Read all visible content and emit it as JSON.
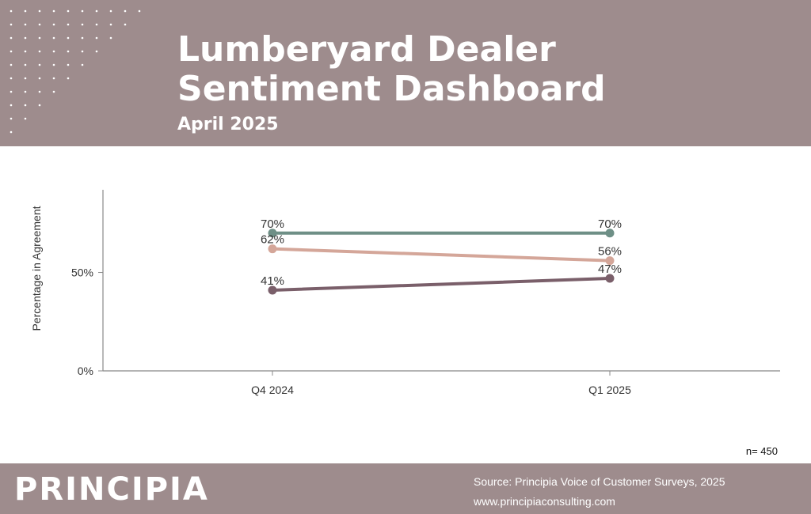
{
  "header": {
    "title_line1": "Lumberyard Dealer",
    "title_line2": "Sentiment Dashboard",
    "subtitle": "April 2025"
  },
  "chart_data": {
    "type": "line",
    "title": "",
    "xlabel": "",
    "ylabel": "Percentage in Agreement",
    "categories": [
      "Q4 2024",
      "Q1 2025"
    ],
    "yticks": [
      "0%",
      "50%"
    ],
    "ylim": [
      0,
      92
    ],
    "grid": false,
    "legend": "none",
    "series": [
      {
        "color": "#6e8f86",
        "values": [
          70,
          70
        ],
        "labels": [
          "70%",
          "70%"
        ]
      },
      {
        "color": "#d4a699",
        "values": [
          62,
          56
        ],
        "labels": [
          "62%",
          "56%"
        ]
      },
      {
        "color": "#7a5f6a",
        "values": [
          41,
          47
        ],
        "labels": [
          "41%",
          "47%"
        ]
      }
    ]
  },
  "note": "n= 450",
  "footer": {
    "logo": "PRINCIPIA",
    "source": "Source: Principia Voice of Customer Surveys, 2025",
    "url": "www.principiaconsulting.com"
  },
  "colors": {
    "band": "#9e8c8d",
    "axis": "#888888"
  }
}
